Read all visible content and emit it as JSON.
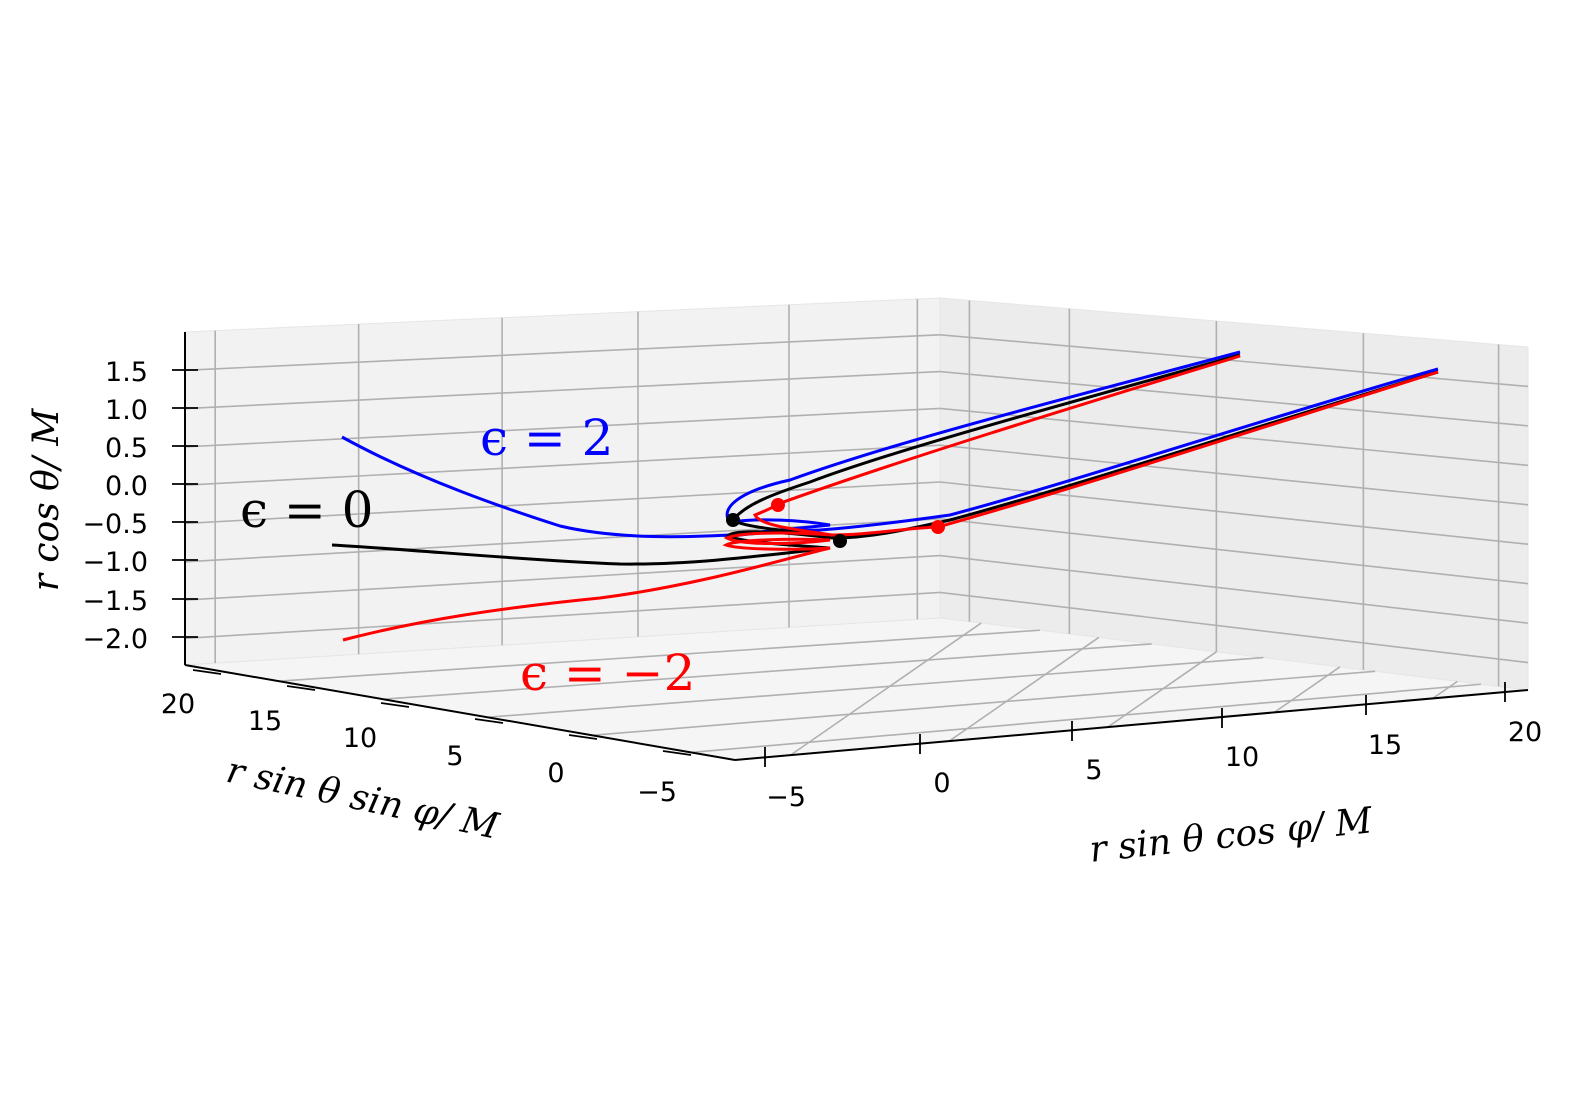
{
  "chart_data": {
    "type": "line",
    "projection": "3d",
    "title": "",
    "xlabel": "r sin θ cos φ/ M",
    "ylabel": "r sin θ sin φ/ M",
    "zlabel": "r cos θ/ M",
    "x_ticks": [
      "−5",
      "0",
      "5",
      "10",
      "15",
      "20"
    ],
    "y_ticks": [
      "20",
      "15",
      "10",
      "5",
      "0",
      "−5"
    ],
    "z_ticks": [
      "1.5",
      "1.0",
      "0.5",
      "0.0",
      "−0.5",
      "−1.0",
      "−1.5",
      "−2.0"
    ],
    "grid": true,
    "series": [
      {
        "color": "#0000ff",
        "annotation": "ϵ = 2"
      },
      {
        "color": "#000000",
        "annotation": "ϵ = 0"
      },
      {
        "color": "#ff0000",
        "annotation": "ϵ = −2"
      }
    ],
    "annotations": {
      "eps_pos": "ϵ = 2",
      "eps_zero": "ϵ = 0",
      "eps_neg": "ϵ = −2"
    }
  }
}
